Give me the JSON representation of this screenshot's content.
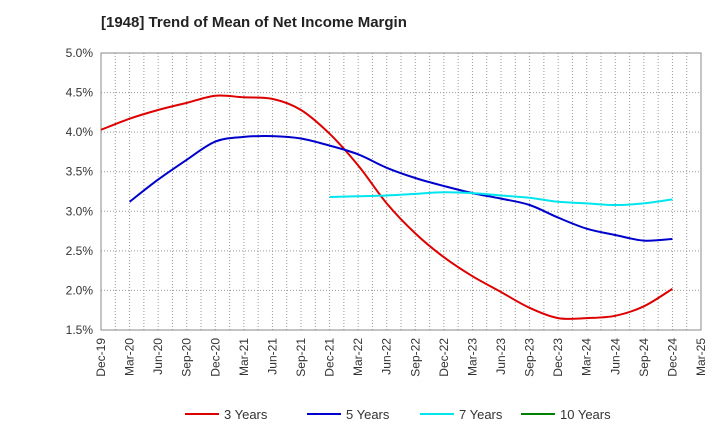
{
  "chart_data": {
    "type": "line",
    "title": "[1948]  Trend of Mean of Net Income Margin",
    "xlabel": "",
    "ylabel": "",
    "x": [
      "Dec-19",
      "Mar-20",
      "Jun-20",
      "Sep-20",
      "Dec-20",
      "Mar-21",
      "Jun-21",
      "Sep-21",
      "Dec-21",
      "Mar-22",
      "Jun-22",
      "Sep-22",
      "Dec-22",
      "Mar-23",
      "Jun-23",
      "Sep-23",
      "Dec-23",
      "Mar-24",
      "Jun-24",
      "Sep-24",
      "Dec-24",
      "Mar-25"
    ],
    "ylim": [
      1.5,
      5.0
    ],
    "yticks": [
      "1.5%",
      "2.0%",
      "2.5%",
      "3.0%",
      "3.5%",
      "4.0%",
      "4.5%",
      "5.0%"
    ],
    "grid": true,
    "legend_position": "bottom",
    "series": [
      {
        "name": "3 Years",
        "color": "#dd0000",
        "values": [
          4.03,
          4.17,
          4.28,
          4.37,
          4.46,
          4.44,
          4.42,
          4.28,
          3.98,
          3.58,
          3.1,
          2.72,
          2.42,
          2.18,
          1.98,
          1.78,
          1.65,
          1.65,
          1.68,
          1.8,
          2.02,
          null
        ]
      },
      {
        "name": "5 Years",
        "color": "#0000cc",
        "values": [
          null,
          3.12,
          3.4,
          3.65,
          3.88,
          3.94,
          3.95,
          3.92,
          3.83,
          3.72,
          3.55,
          3.42,
          3.32,
          3.23,
          3.16,
          3.08,
          2.92,
          2.78,
          2.7,
          2.63,
          2.65,
          null
        ]
      },
      {
        "name": "7 Years",
        "color": "#00e5ee",
        "values": [
          null,
          null,
          null,
          null,
          null,
          null,
          null,
          null,
          3.18,
          3.19,
          3.2,
          3.22,
          3.24,
          3.23,
          3.2,
          3.17,
          3.12,
          3.1,
          3.08,
          3.1,
          3.15,
          null
        ]
      },
      {
        "name": "10 Years",
        "color": "#008000",
        "values": [
          null,
          null,
          null,
          null,
          null,
          null,
          null,
          null,
          null,
          null,
          null,
          null,
          null,
          null,
          null,
          null,
          null,
          null,
          null,
          null,
          null,
          null
        ]
      }
    ]
  }
}
